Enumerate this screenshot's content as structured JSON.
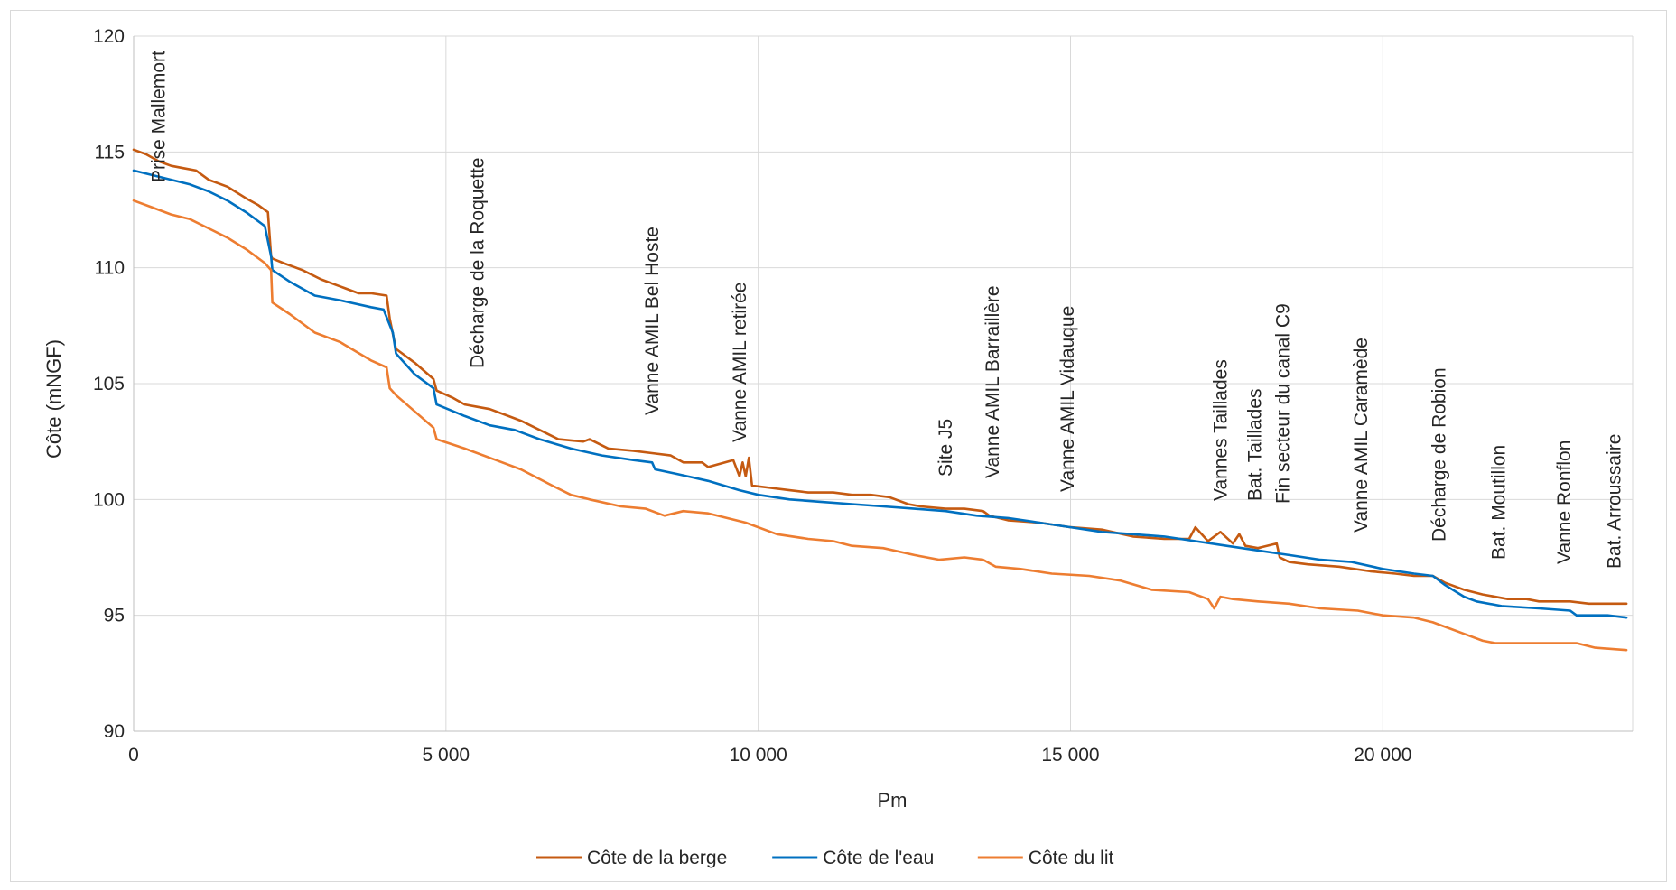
{
  "chart_data": {
    "type": "line",
    "title": "",
    "xlabel": "Pm",
    "ylabel": "Côte (mNGF)",
    "xlim": [
      0,
      24000
    ],
    "ylim": [
      90,
      120
    ],
    "xticks": [
      0,
      5000,
      10000,
      15000,
      20000
    ],
    "xtick_labels": [
      "0",
      "5 000",
      "10 000",
      "15 000",
      "20 000"
    ],
    "yticks": [
      90,
      95,
      100,
      105,
      110,
      115,
      120
    ],
    "ytick_labels": [
      "90",
      "95",
      "100",
      "105",
      "110",
      "115",
      "120"
    ],
    "grid": "major gridlines on both axes",
    "legend_position": "bottom",
    "annotations": [
      {
        "text": "Prise Mallemort",
        "x": 400
      },
      {
        "text": "Décharge de la Roquette",
        "x": 5500
      },
      {
        "text": "Vanne AMIL Bel Hoste",
        "x": 8300
      },
      {
        "text": "Vanne AMIL  retirée",
        "x": 9700
      },
      {
        "text": "Site J5",
        "x": 13000
      },
      {
        "text": "Vanne AMIL Barraillère",
        "x": 13750
      },
      {
        "text": "Vanne AMIL Vidauque",
        "x": 14950
      },
      {
        "text": "Vannes Taillades",
        "x": 17400
      },
      {
        "text": "Bat. Taillades",
        "x": 17950
      },
      {
        "text": "Fin secteur du canal C9",
        "x": 18400
      },
      {
        "text": "Vanne AMIL Caramède",
        "x": 19650
      },
      {
        "text": "Décharge de Robion",
        "x": 20900
      },
      {
        "text": "Bat. Moutillon",
        "x": 21850
      },
      {
        "text": "Vanne Ronflon",
        "x": 22900
      },
      {
        "text": "Bat. Arroussaire",
        "x": 23700
      }
    ],
    "series": [
      {
        "name": "Côte de la berge",
        "color": "#C55A11",
        "x": [
          0,
          200,
          400,
          600,
          800,
          1000,
          1200,
          1500,
          1800,
          2000,
          2150,
          2200,
          2220,
          2400,
          2700,
          3000,
          3300,
          3600,
          3800,
          4050,
          4100,
          4200,
          4500,
          4800,
          4850,
          5100,
          5300,
          5500,
          5700,
          6000,
          6200,
          6500,
          6800,
          7200,
          7300,
          7600,
          8000,
          8300,
          8600,
          8800,
          9100,
          9200,
          9600,
          9700,
          9750,
          9800,
          9850,
          9900,
          10200,
          10500,
          10800,
          11200,
          11500,
          11800,
          12100,
          12400,
          12600,
          13000,
          13300,
          13600,
          13700,
          14000,
          14500,
          15000,
          15500,
          16000,
          16500,
          16900,
          17000,
          17200,
          17400,
          17600,
          17700,
          17800,
          18000,
          18300,
          18350,
          18500,
          18800,
          19300,
          19800,
          20200,
          20500,
          20800,
          21000,
          21300,
          21600,
          22000,
          22300,
          22500,
          22700,
          23000,
          23300,
          23600,
          23900
        ],
        "y": [
          115.1,
          114.9,
          114.6,
          114.4,
          114.3,
          114.2,
          113.8,
          113.5,
          113.0,
          112.7,
          112.4,
          110.5,
          110.4,
          110.2,
          109.9,
          109.5,
          109.2,
          108.9,
          108.9,
          108.8,
          107.8,
          106.5,
          105.9,
          105.2,
          104.7,
          104.4,
          104.1,
          104.0,
          103.9,
          103.6,
          103.4,
          103.0,
          102.6,
          102.5,
          102.6,
          102.2,
          102.1,
          102.0,
          101.9,
          101.6,
          101.6,
          101.4,
          101.7,
          101.0,
          101.6,
          101.0,
          101.8,
          100.6,
          100.5,
          100.4,
          100.3,
          100.3,
          100.2,
          100.2,
          100.1,
          99.8,
          99.7,
          99.6,
          99.6,
          99.5,
          99.3,
          99.1,
          99.0,
          98.8,
          98.7,
          98.4,
          98.3,
          98.3,
          98.8,
          98.2,
          98.6,
          98.1,
          98.5,
          98.0,
          97.9,
          98.1,
          97.5,
          97.3,
          97.2,
          97.1,
          96.9,
          96.8,
          96.7,
          96.7,
          96.4,
          96.1,
          95.9,
          95.7,
          95.7,
          95.6,
          95.6,
          95.6,
          95.5,
          95.5,
          95.5
        ]
      },
      {
        "name": "Côte de l'eau",
        "color": "#0070C0",
        "x": [
          0,
          300,
          600,
          900,
          1200,
          1500,
          1800,
          2100,
          2200,
          2220,
          2500,
          2900,
          3300,
          3800,
          4000,
          4150,
          4200,
          4500,
          4800,
          4850,
          5300,
          5700,
          6100,
          6500,
          7000,
          7500,
          8000,
          8300,
          8350,
          8700,
          9200,
          9700,
          10000,
          10500,
          11000,
          11500,
          12000,
          12500,
          13000,
          13500,
          14000,
          14500,
          15000,
          15500,
          16000,
          16500,
          17000,
          17500,
          18000,
          18500,
          19000,
          19500,
          20000,
          20500,
          20800,
          21000,
          21300,
          21500,
          21900,
          22500,
          23000,
          23100,
          23600,
          23900
        ],
        "y": [
          114.2,
          114.0,
          113.8,
          113.6,
          113.3,
          112.9,
          112.4,
          111.8,
          110.5,
          109.9,
          109.4,
          108.8,
          108.6,
          108.3,
          108.2,
          107.2,
          106.3,
          105.4,
          104.8,
          104.1,
          103.6,
          103.2,
          103.0,
          102.6,
          102.2,
          101.9,
          101.7,
          101.6,
          101.3,
          101.1,
          100.8,
          100.4,
          100.2,
          100.0,
          99.9,
          99.8,
          99.7,
          99.6,
          99.5,
          99.3,
          99.2,
          99.0,
          98.8,
          98.6,
          98.5,
          98.4,
          98.2,
          98.0,
          97.8,
          97.6,
          97.4,
          97.3,
          97.0,
          96.8,
          96.7,
          96.3,
          95.8,
          95.6,
          95.4,
          95.3,
          95.2,
          95.0,
          95.0,
          94.9
        ]
      },
      {
        "name": "Côte du lit",
        "color": "#ED7D31",
        "x": [
          0,
          300,
          600,
          900,
          1200,
          1500,
          1800,
          2100,
          2200,
          2220,
          2500,
          2900,
          3300,
          3800,
          4050,
          4100,
          4200,
          4500,
          4800,
          4850,
          5300,
          5800,
          6200,
          6700,
          7000,
          7300,
          7800,
          8200,
          8500,
          8800,
          9200,
          9500,
          9800,
          10300,
          10800,
          11200,
          11500,
          12000,
          12500,
          12900,
          13300,
          13600,
          13800,
          14200,
          14700,
          15300,
          15800,
          16300,
          16900,
          17200,
          17300,
          17400,
          17600,
          18000,
          18500,
          19000,
          19600,
          20000,
          20500,
          20800,
          21000,
          21300,
          21600,
          21800,
          22200,
          22600,
          23100,
          23400,
          23900
        ],
        "y": [
          112.9,
          112.6,
          112.3,
          112.1,
          111.7,
          111.3,
          110.8,
          110.2,
          109.9,
          108.5,
          108.0,
          107.2,
          106.8,
          106.0,
          105.7,
          104.8,
          104.5,
          103.8,
          103.1,
          102.6,
          102.2,
          101.7,
          101.3,
          100.6,
          100.2,
          100.0,
          99.7,
          99.6,
          99.3,
          99.5,
          99.4,
          99.2,
          99.0,
          98.5,
          98.3,
          98.2,
          98.0,
          97.9,
          97.6,
          97.4,
          97.5,
          97.4,
          97.1,
          97.0,
          96.8,
          96.7,
          96.5,
          96.1,
          96.0,
          95.7,
          95.3,
          95.8,
          95.7,
          95.6,
          95.5,
          95.3,
          95.2,
          95.0,
          94.9,
          94.7,
          94.5,
          94.2,
          93.9,
          93.8,
          93.8,
          93.8,
          93.8,
          93.6,
          93.5
        ]
      }
    ]
  }
}
